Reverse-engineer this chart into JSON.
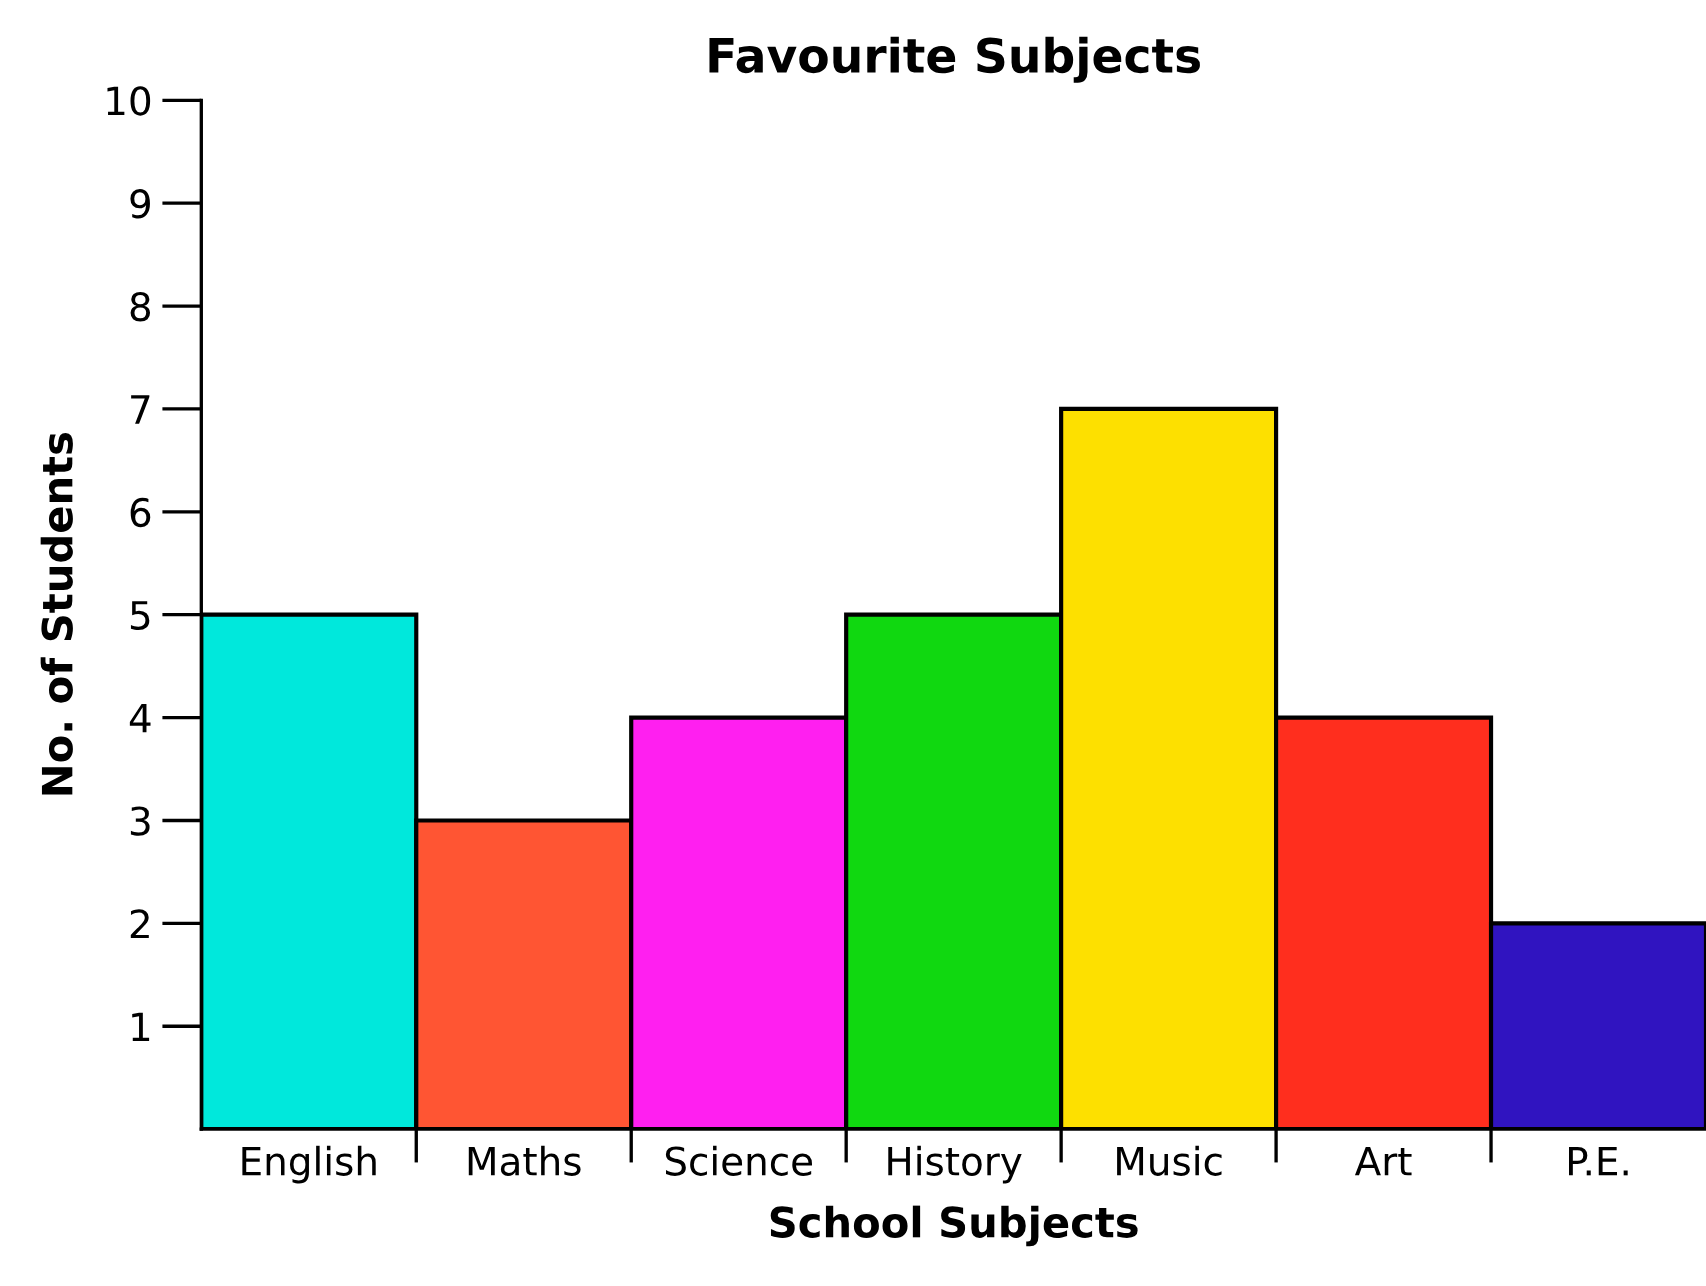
{
  "chart_data": {
    "type": "bar",
    "title": "Favourite Subjects",
    "xlabel": "School Subjects",
    "ylabel": "No. of Students",
    "categories": [
      "English",
      "Maths",
      "Science",
      "History",
      "Music",
      "Art",
      "P.E."
    ],
    "values": [
      5,
      3,
      4,
      5,
      7,
      4,
      2
    ],
    "colors": [
      "#00e8dc",
      "#ff5533",
      "#ff1ff0",
      "#10d810",
      "#fde000",
      "#ff2e1e",
      "#3014c0"
    ],
    "ylim": [
      0,
      10
    ],
    "yticks": [
      1,
      2,
      3,
      4,
      5,
      6,
      7,
      8,
      9,
      10
    ],
    "grid": false,
    "legend": false
  }
}
